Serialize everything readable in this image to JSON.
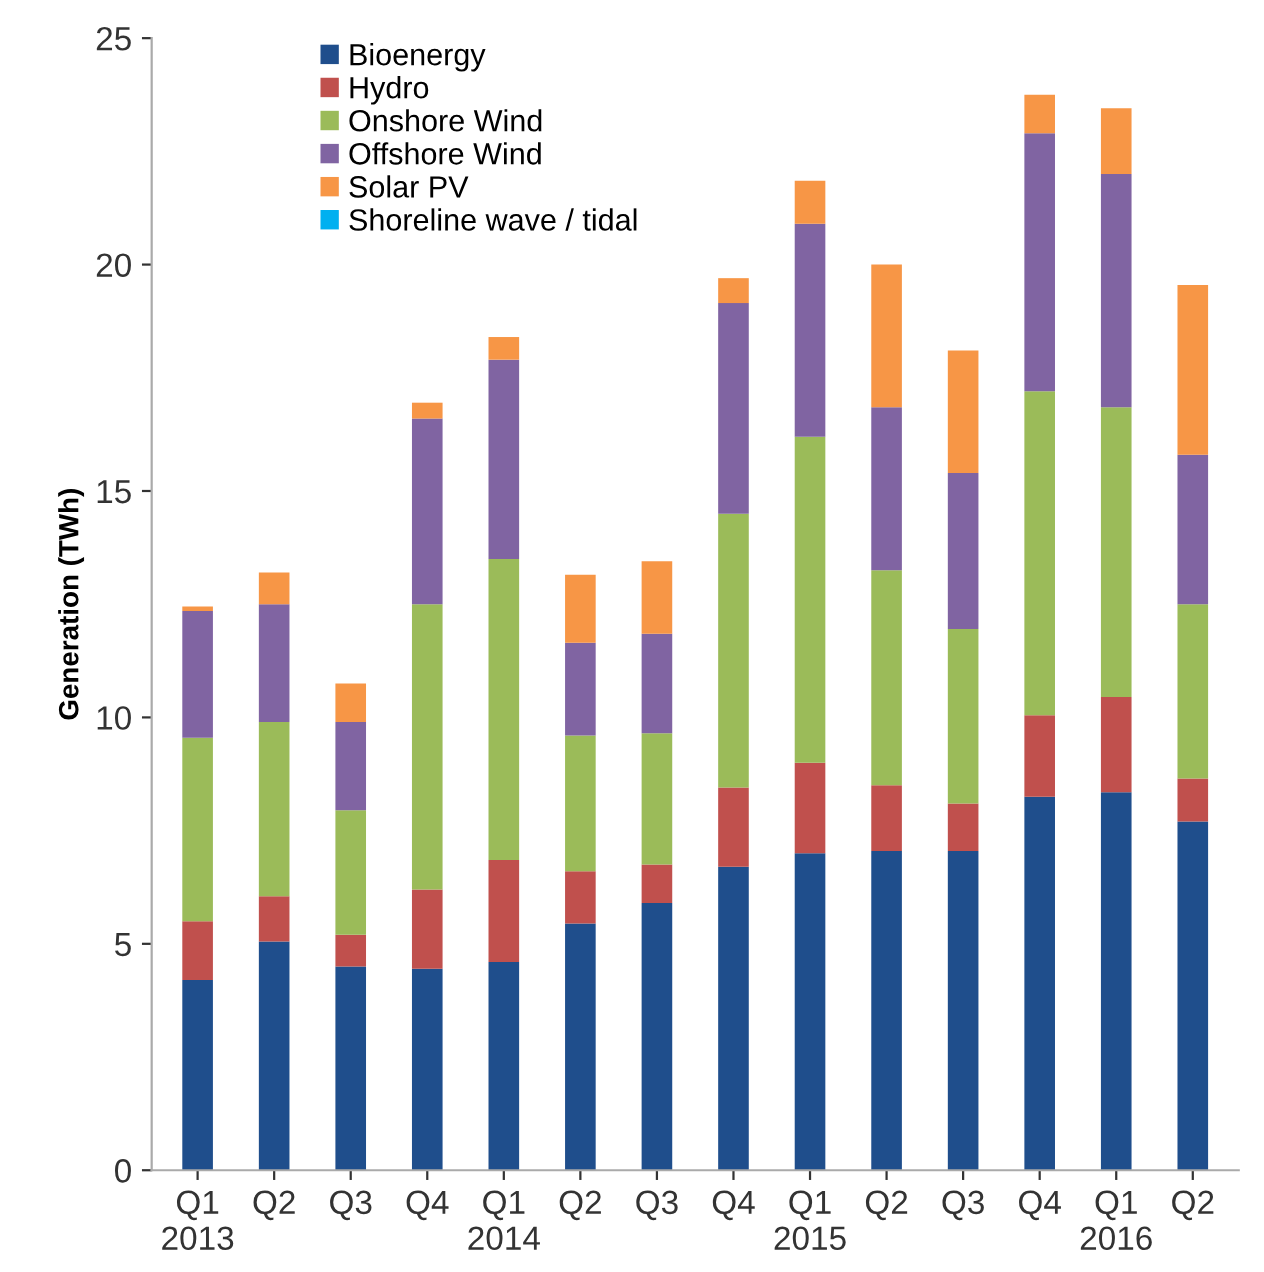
{
  "chart_data": {
    "type": "bar",
    "stacked": true,
    "ylabel": "Generation (TWh)",
    "categories": [
      "Q1\n2013",
      "Q2",
      "Q3",
      "Q4",
      "Q1\n2014",
      "Q2",
      "Q3",
      "Q4",
      "Q1\n2015",
      "Q2",
      "Q3",
      "Q4",
      "Q1\n2016",
      "Q2"
    ],
    "series": [
      {
        "name": "Bioenergy",
        "color": "#1f4e8c",
        "values": [
          4.2,
          5.05,
          4.5,
          4.45,
          4.6,
          5.45,
          5.9,
          6.7,
          7.0,
          7.05,
          7.05,
          8.25,
          8.35,
          7.7
        ]
      },
      {
        "name": "Hydro",
        "color": "#c0504d",
        "values": [
          1.3,
          1.0,
          0.7,
          1.75,
          2.25,
          1.15,
          0.85,
          1.75,
          2.0,
          1.45,
          1.05,
          1.8,
          2.1,
          0.95
        ]
      },
      {
        "name": "Onshore Wind",
        "color": "#9bbb59",
        "values": [
          4.05,
          3.85,
          2.75,
          6.3,
          6.65,
          3.0,
          2.9,
          6.05,
          7.2,
          4.75,
          3.85,
          7.15,
          6.4,
          3.85
        ]
      },
      {
        "name": "Offshore Wind",
        "color": "#8064a2",
        "values": [
          2.8,
          2.6,
          1.95,
          4.1,
          4.4,
          2.05,
          2.2,
          4.65,
          4.7,
          3.6,
          3.45,
          5.7,
          5.15,
          3.3
        ]
      },
      {
        "name": "Solar PV",
        "color": "#f79646",
        "values": [
          0.1,
          0.7,
          0.85,
          0.35,
          0.5,
          1.5,
          1.6,
          0.55,
          0.95,
          3.15,
          2.7,
          0.85,
          1.45,
          3.75
        ]
      },
      {
        "name": "Shoreline wave / tidal",
        "color": "#00b0f0",
        "values": [
          0,
          0,
          0,
          0,
          0,
          0,
          0,
          0,
          0,
          0,
          0,
          0,
          0,
          0
        ]
      }
    ],
    "ylim": [
      0,
      25
    ],
    "yticks": [
      0,
      5,
      10,
      15,
      20,
      25
    ],
    "grid": false,
    "legend": "top left"
  }
}
